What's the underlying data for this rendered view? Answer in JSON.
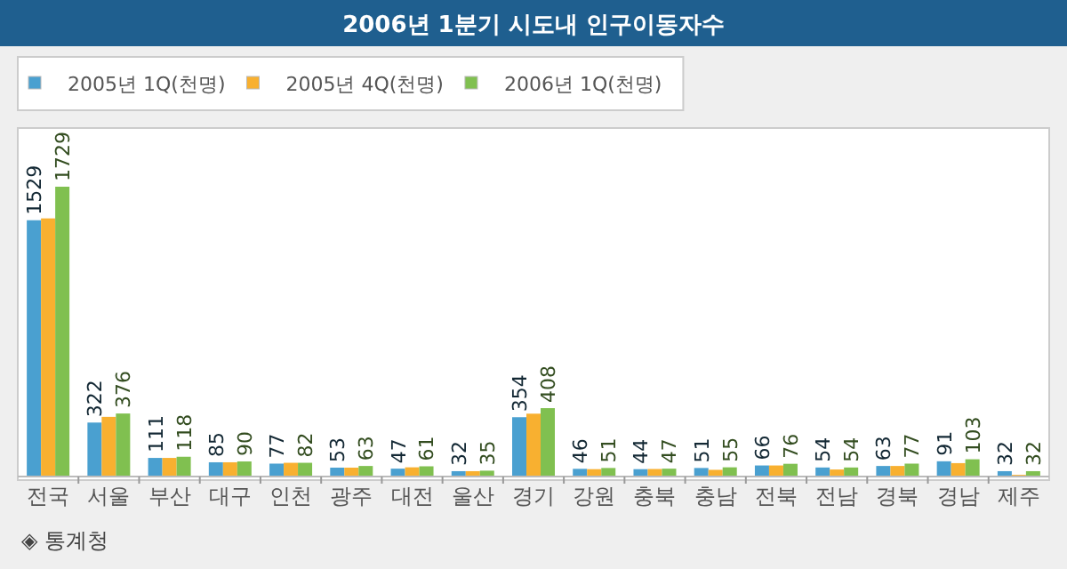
{
  "chart_data": {
    "type": "bar",
    "title": "2006년 1분기 시도내 인구이동자수",
    "categories": [
      "전국",
      "서울",
      "부산",
      "대구",
      "인천",
      "광주",
      "대전",
      "울산",
      "경기",
      "강원",
      "충북",
      "충남",
      "전북",
      "전남",
      "경북",
      "경남",
      "제주"
    ],
    "series": [
      {
        "name": "2005년 1Q(천명)",
        "color": "#4aa0d0",
        "values": [
          1529,
          322,
          111,
          85,
          77,
          53,
          47,
          32,
          354,
          46,
          44,
          51,
          66,
          54,
          63,
          91,
          32
        ],
        "value_labels": [
          "1529",
          "322",
          "111",
          "85",
          "77",
          "53",
          "47",
          "32",
          "354",
          "46",
          "44",
          "51",
          "66",
          "54",
          "63",
          "91",
          "32"
        ]
      },
      {
        "name": "2005년 4Q(천명)",
        "color": "#f8b030",
        "values": [
          1540,
          356,
          111,
          85,
          82,
          53,
          55,
          32,
          375,
          44,
          45,
          40,
          66,
          42,
          63,
          80,
          10
        ]
      },
      {
        "name": "2006년 1Q(천명)",
        "color": "#80c050",
        "values": [
          1729,
          376,
          118,
          90,
          82,
          63,
          61,
          35,
          408,
          51,
          47,
          55,
          76,
          54,
          77,
          103,
          32
        ],
        "value_labels": [
          "1729",
          "376",
          "118",
          "90",
          "82",
          "63",
          "61",
          "35",
          "408",
          "51",
          "47",
          "55",
          "76",
          "54",
          "77",
          "103",
          "32"
        ]
      }
    ],
    "legend": "top left",
    "annotations": [
      "◈ 통계청"
    ]
  }
}
